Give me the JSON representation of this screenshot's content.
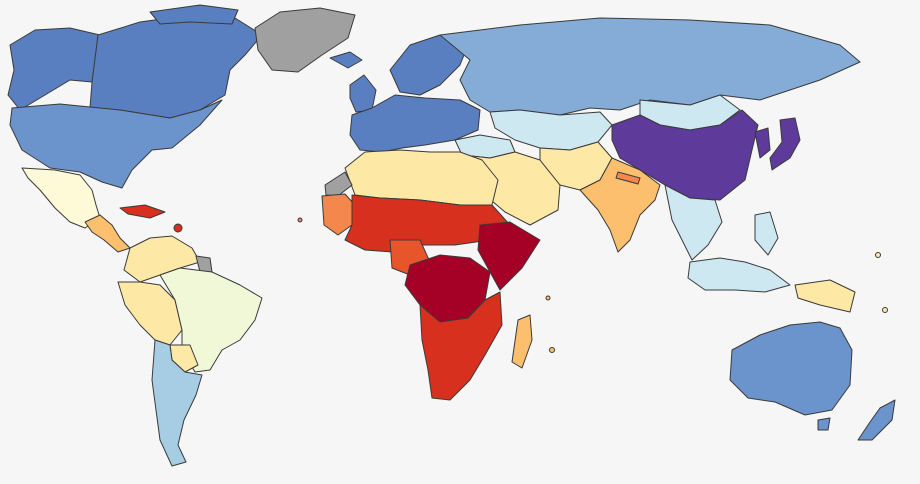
{
  "map": {
    "type": "choropleth-world-map",
    "legend_visible": false,
    "title": "",
    "palette": {
      "ocean": "#f6f6f6",
      "no_data": "#a0a0a0",
      "deep_red": "#a50026",
      "red": "#d7301f",
      "orange_red": "#e9552b",
      "orange": "#f4874b",
      "light_orange": "#fbbf6e",
      "pale_yellow": "#fde8a6",
      "cream": "#fef9d6",
      "pale_green_yellow": "#f1f8d8",
      "light_blue": "#cde8f1",
      "sky_blue": "#a6cde4",
      "medium_blue": "#85acd7",
      "steel_blue": "#6b93cc",
      "royal_blue": "#5a7fc0",
      "purple": "#5e3a9a"
    },
    "regions": [
      {
        "name": "greenland",
        "color_key": "no_data"
      },
      {
        "name": "canada",
        "color_key": "royal_blue"
      },
      {
        "name": "alaska",
        "color_key": "royal_blue"
      },
      {
        "name": "united-states",
        "color_key": "steel_blue"
      },
      {
        "name": "mexico",
        "color_key": "cream"
      },
      {
        "name": "central-america",
        "color_key": "light_orange"
      },
      {
        "name": "caribbean",
        "color_key": "red"
      },
      {
        "name": "colombia-venezuela",
        "color_key": "pale_yellow"
      },
      {
        "name": "guianas",
        "color_key": "no_data"
      },
      {
        "name": "peru-bolivia",
        "color_key": "pale_yellow"
      },
      {
        "name": "brazil",
        "color_key": "pale_green_yellow"
      },
      {
        "name": "paraguay",
        "color_key": "pale_yellow"
      },
      {
        "name": "argentina-chile",
        "color_key": "sky_blue"
      },
      {
        "name": "europe-west",
        "color_key": "royal_blue"
      },
      {
        "name": "scandinavia",
        "color_key": "royal_blue"
      },
      {
        "name": "iceland",
        "color_key": "royal_blue"
      },
      {
        "name": "british-isles",
        "color_key": "royal_blue"
      },
      {
        "name": "russia",
        "color_key": "medium_blue"
      },
      {
        "name": "kazakhstan-central-asia",
        "color_key": "light_blue"
      },
      {
        "name": "turkey-caucasus",
        "color_key": "light_blue"
      },
      {
        "name": "north-africa",
        "color_key": "pale_yellow"
      },
      {
        "name": "western-sahara",
        "color_key": "no_data"
      },
      {
        "name": "west-africa-coast",
        "color_key": "orange"
      },
      {
        "name": "sahel",
        "color_key": "red"
      },
      {
        "name": "nigeria",
        "color_key": "orange_red"
      },
      {
        "name": "central-africa",
        "color_key": "deep_red"
      },
      {
        "name": "east-africa",
        "color_key": "deep_red"
      },
      {
        "name": "southern-africa",
        "color_key": "red"
      },
      {
        "name": "madagascar",
        "color_key": "light_orange"
      },
      {
        "name": "middle-east",
        "color_key": "pale_yellow"
      },
      {
        "name": "iran-afghanistan",
        "color_key": "pale_yellow"
      },
      {
        "name": "india",
        "color_key": "light_orange"
      },
      {
        "name": "nepal",
        "color_key": "orange"
      },
      {
        "name": "mongolia",
        "color_key": "light_blue"
      },
      {
        "name": "china",
        "color_key": "purple"
      },
      {
        "name": "korea",
        "color_key": "purple"
      },
      {
        "name": "japan",
        "color_key": "purple"
      },
      {
        "name": "southeast-asia",
        "color_key": "light_blue"
      },
      {
        "name": "malaysia-indonesia",
        "color_key": "light_blue"
      },
      {
        "name": "philippines",
        "color_key": "light_blue"
      },
      {
        "name": "papua-new-guinea",
        "color_key": "pale_yellow"
      },
      {
        "name": "australia",
        "color_key": "steel_blue"
      },
      {
        "name": "new-zealand",
        "color_key": "steel_blue"
      }
    ]
  }
}
